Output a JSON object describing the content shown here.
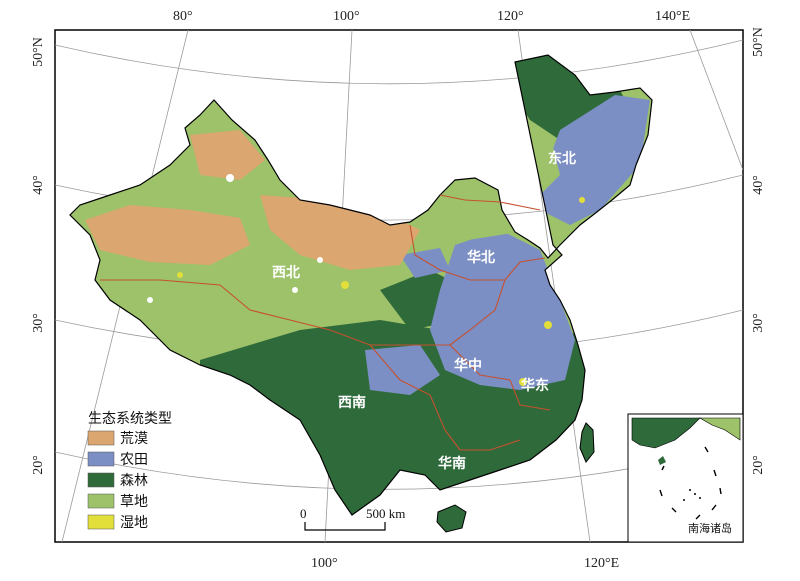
{
  "map": {
    "top_ticks": [
      "80°",
      "100°",
      "120°",
      "140°E"
    ],
    "bottom_ticks": [
      "100°",
      "120°E"
    ],
    "left_ticks": [
      "50°N",
      "40°",
      "30°",
      "20°"
    ],
    "right_ticks": [
      "50°N",
      "40°",
      "30°",
      "20°"
    ],
    "regions": [
      "东北",
      "华北",
      "西北",
      "华中",
      "华东",
      "西南",
      "华南"
    ],
    "legend": {
      "title": "生态系统类型",
      "items": [
        {
          "label": "荒漠",
          "color": "#dba66f"
        },
        {
          "label": "农田",
          "color": "#7b8fc4"
        },
        {
          "label": "森林",
          "color": "#2f6a3a"
        },
        {
          "label": "草地",
          "color": "#9dc26a"
        },
        {
          "label": "湿地",
          "color": "#e3df3a"
        }
      ]
    },
    "scale_bar": {
      "start": "0",
      "end": "500 km"
    },
    "inset_label": "南海诸岛"
  }
}
